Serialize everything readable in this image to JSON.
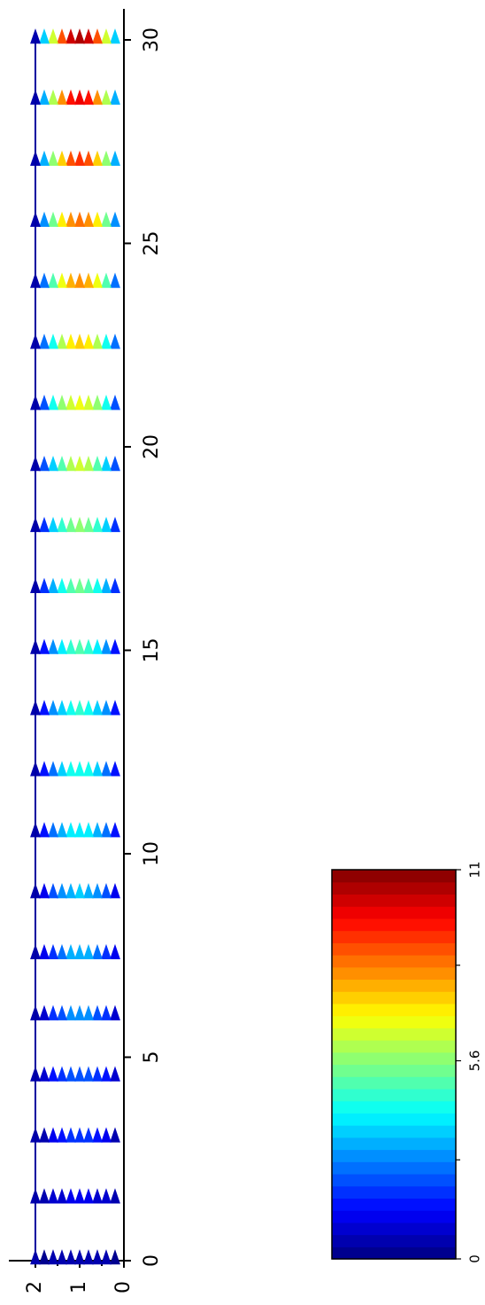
{
  "chart_data": {
    "type": "quiver",
    "title": "",
    "xlabel": "",
    "ylabel": "",
    "orientation": "rotated-90",
    "x_axis": {
      "lim": [
        0,
        30
      ],
      "ticks": [
        0,
        5,
        10,
        15,
        20,
        25,
        30
      ],
      "tick_labels": [
        "0",
        "5",
        "10",
        "15",
        "20",
        "25",
        "30"
      ]
    },
    "y_axis": {
      "lim": [
        0,
        2
      ],
      "ticks": [
        0,
        1,
        2
      ],
      "tick_labels": [
        "0",
        "1",
        "2"
      ]
    },
    "reference_line": {
      "y": 2,
      "color": "#0000a0"
    },
    "stations_x": [
      0,
      1.5,
      3,
      4.5,
      6,
      7.5,
      9,
      10.5,
      12,
      13.5,
      15,
      16.5,
      18,
      19.5,
      21,
      22.5,
      24,
      25.5,
      27,
      28.5,
      30
    ],
    "arrow_levels_y": [
      0.2,
      0.4,
      0.6,
      0.8,
      1.0,
      1.2,
      1.4,
      1.6,
      1.8,
      2.0
    ],
    "peak_magnitude": [
      0.6,
      1.2,
      1.9,
      2.4,
      2.9,
      3.3,
      3.6,
      4.1,
      4.4,
      4.6,
      4.9,
      5.3,
      5.7,
      6.2,
      6.8,
      7.3,
      8.0,
      8.5,
      9.2,
      9.8,
      10.5
    ],
    "colorbar": {
      "min": 0,
      "max": 11,
      "ticks": [
        0,
        5.6,
        11
      ],
      "tick_labels": [
        "0",
        "5.6",
        "11"
      ],
      "levels": 32,
      "colormap": "jet"
    }
  }
}
